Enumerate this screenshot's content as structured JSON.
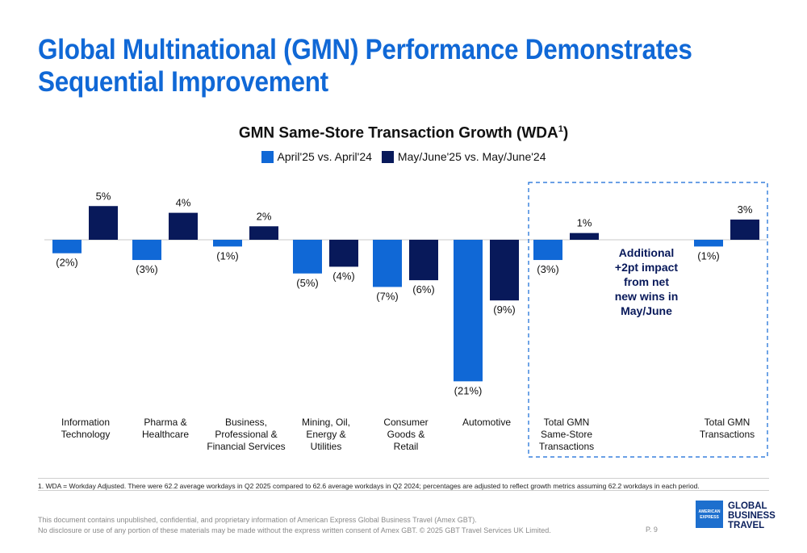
{
  "slide": {
    "title": "Global Multinational (GMN) Performance Demonstrates Sequential Improvement",
    "footnote": "1. WDA = Workday Adjusted. There were 62.2 average workdays in Q2 2025 compared to 62.6 average workdays in Q2 2024; percentages are adjusted to reflect growth metrics assuming 62.2 workdays in each period.",
    "disclaimer_line1": "This document contains unpublished, confidential, and proprietary information of American Express Global Business Travel (Amex GBT).",
    "disclaimer_line2": "No disclosure or use of any portion of these materials may be made without the express written consent of Amex GBT. © 2025 GBT Travel Services UK Limited.",
    "page_number": "P. 9"
  },
  "logo": {
    "badge_line1": "AMERICAN",
    "badge_line2": "EXPRESS",
    "text_line1": "GLOBAL",
    "text_line2": "BUSINESS",
    "text_line3": "TRAVEL"
  },
  "chart_data": {
    "type": "bar",
    "title": "GMN Same-Store Transaction Growth (WDA",
    "title_sup": "1",
    "title_end": ")",
    "categories": [
      "Information Technology",
      "Pharma & Healthcare",
      "Business, Professional & Financial Services",
      "Mining, Oil, Energy & Utilities",
      "Consumer Goods & Retail",
      "Automotive",
      "Total GMN Same-Store Transactions",
      "Total GMN Transactions"
    ],
    "category_lines": [
      [
        "Information",
        "Technology"
      ],
      [
        "Pharma &",
        "Healthcare"
      ],
      [
        "Business,",
        "Professional &",
        "Financial Services"
      ],
      [
        "Mining, Oil,",
        "Energy &",
        "Utilities"
      ],
      [
        "Consumer",
        "Goods &",
        "Retail"
      ],
      [
        "Automotive"
      ],
      [
        "Total GMN",
        "Same-Store",
        "Transactions"
      ],
      [
        "Total GMN",
        "Transactions"
      ]
    ],
    "series": [
      {
        "name": "April'25 vs. April'24",
        "color": "#1068d6",
        "values": [
          -2,
          -3,
          -1,
          -5,
          -7,
          -21,
          -3,
          -1
        ],
        "labels": [
          "(2%)",
          "(3%)",
          "(1%)",
          "(5%)",
          "(7%)",
          "(21%)",
          "(3%)",
          "(1%)"
        ]
      },
      {
        "name": "May/June'25 vs. May/June'24",
        "color": "#08195a",
        "values": [
          5,
          4,
          2,
          -4,
          -6,
          -9,
          1,
          3
        ],
        "labels": [
          "5%",
          "4%",
          "2%",
          "(4%)",
          "(6%)",
          "(9%)",
          "1%",
          "3%"
        ]
      }
    ],
    "annotation_lines": [
      "Additional",
      "+2pt impact",
      "from net",
      "new wins in",
      "May/June"
    ],
    "unit": "%",
    "grid": false,
    "legend_position": "top"
  }
}
